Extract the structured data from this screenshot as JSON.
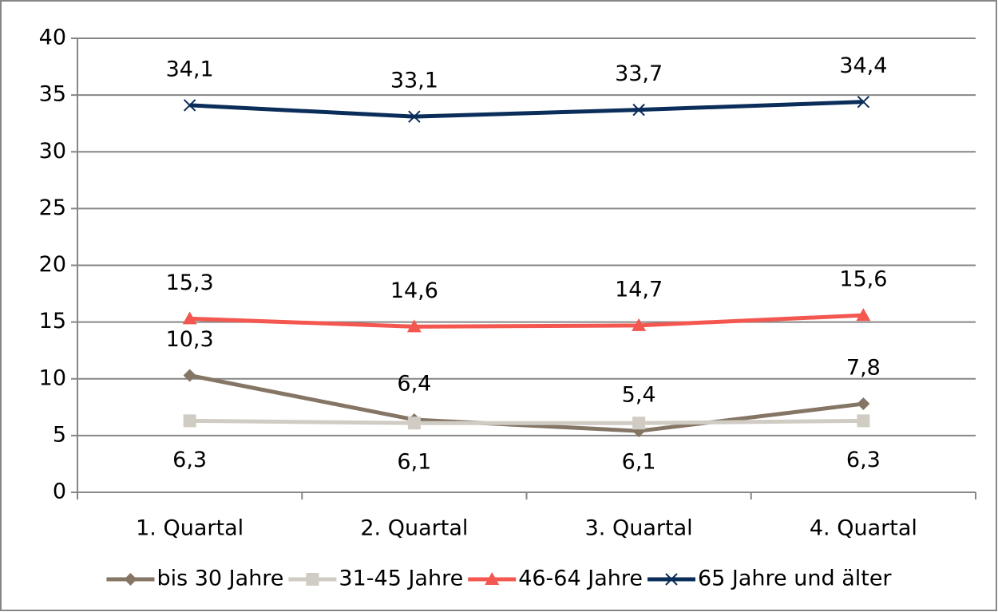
{
  "chart_data": {
    "type": "line",
    "categories": [
      "1. Quartal",
      "2. Quartal",
      "3. Quartal",
      "4. Quartal"
    ],
    "series": [
      {
        "name": "bis 30 Jahre",
        "color": "#857565",
        "marker": "diamond",
        "label_position": "above",
        "values": [
          10.3,
          6.4,
          5.4,
          7.8
        ],
        "value_labels": [
          "10,3",
          "6,4",
          "5,4",
          "7,8"
        ]
      },
      {
        "name": "31-45 Jahre",
        "color": "#d0ccc4",
        "marker": "square",
        "label_position": "below",
        "values": [
          6.3,
          6.1,
          6.1,
          6.3
        ],
        "value_labels": [
          "6,3",
          "6,1",
          "6,1",
          "6,3"
        ]
      },
      {
        "name": "46-64 Jahre",
        "color": "#f4574f",
        "marker": "triangle",
        "label_position": "above",
        "values": [
          15.3,
          14.6,
          14.7,
          15.6
        ],
        "value_labels": [
          "15,3",
          "14,6",
          "14,7",
          "15,6"
        ]
      },
      {
        "name": "65 Jahre und älter",
        "color": "#0a2d5a",
        "marker": "x",
        "label_position": "above",
        "values": [
          34.1,
          33.1,
          33.7,
          34.4
        ],
        "value_labels": [
          "34,1",
          "33,1",
          "33,7",
          "34,4"
        ]
      }
    ],
    "ylim": [
      0,
      40
    ],
    "yticks": [
      0,
      5,
      10,
      15,
      20,
      25,
      30,
      35,
      40
    ],
    "grid": true,
    "legend": "bottom"
  }
}
